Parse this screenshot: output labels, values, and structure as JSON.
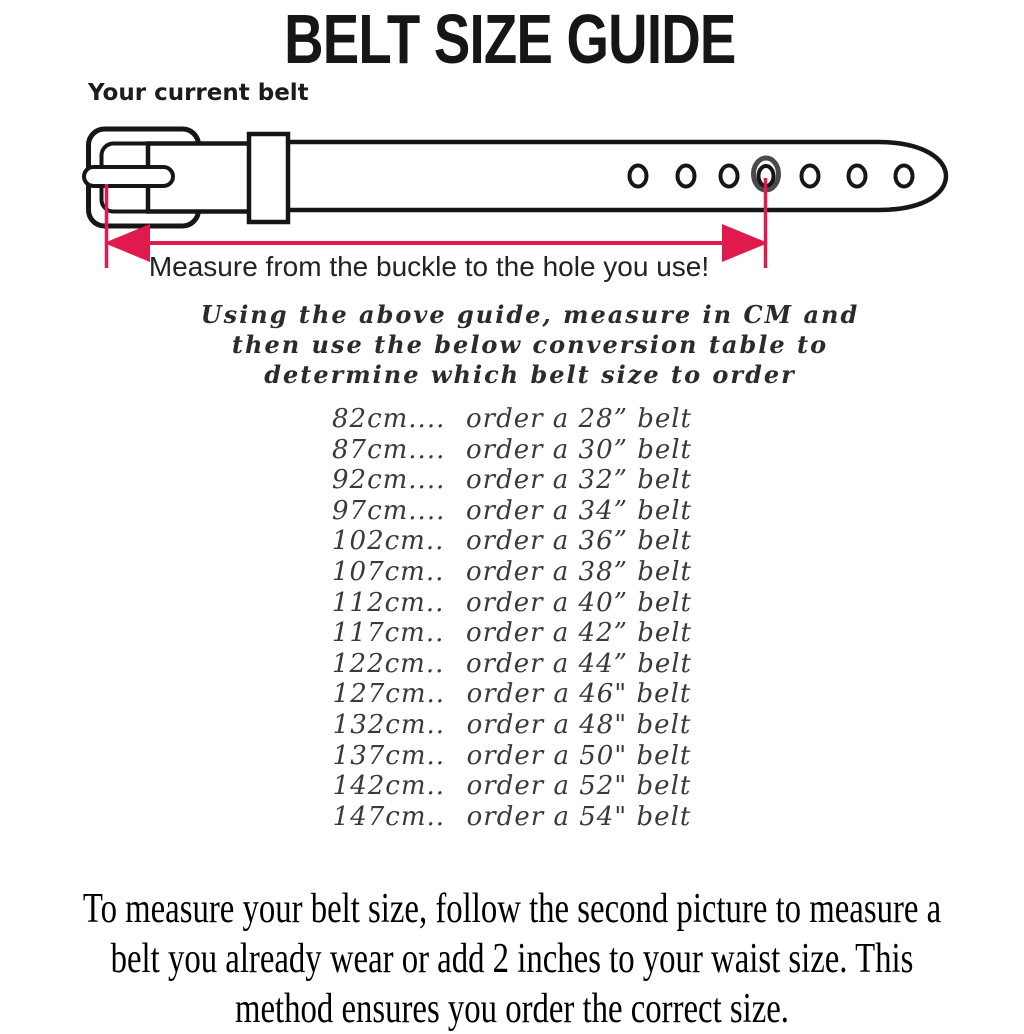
{
  "page": {
    "background": "#ffffff"
  },
  "title": "BELT SIZE GUIDE",
  "diagram": {
    "label": "Your current belt",
    "caption": "Measure from the buckle to the hole you use!",
    "hole_count": 7,
    "highlighted_hole": 4,
    "colors": {
      "line": "#161616",
      "accent_red": "#e11a4d"
    }
  },
  "instructions": {
    "lines": [
      "Using the above guide, measure in CM and",
      "then use the below conversion table to",
      "determine which belt size to order"
    ]
  },
  "conversion_table": {
    "rows": [
      {
        "cm": "82cm....",
        "order": "order a 28” belt"
      },
      {
        "cm": "87cm....",
        "order": "order a 30” belt"
      },
      {
        "cm": "92cm....",
        "order": "order a 32” belt"
      },
      {
        "cm": "97cm....",
        "order": "order a 34” belt"
      },
      {
        "cm": "102cm..",
        "order": "order a 36” belt"
      },
      {
        "cm": "107cm..",
        "order": "order a 38” belt"
      },
      {
        "cm": "112cm..",
        "order": "order a 40” belt"
      },
      {
        "cm": "117cm..",
        "order": "order a 42” belt"
      },
      {
        "cm": "122cm..",
        "order": "order a 44” belt"
      },
      {
        "cm": "127cm..",
        "order": "order a 46\" belt"
      },
      {
        "cm": "132cm..",
        "order": "order a 48\" belt"
      },
      {
        "cm": "137cm..",
        "order": "order a 50\" belt"
      },
      {
        "cm": "142cm..",
        "order": "order a 52\" belt"
      },
      {
        "cm": "147cm..",
        "order": "order a 54\" belt"
      }
    ]
  },
  "footer": {
    "lines": [
      "To measure your belt size, follow the second picture to measure a",
      "belt you already wear or add 2 inches to your waist size. This",
      "method ensures you order the correct size."
    ]
  }
}
